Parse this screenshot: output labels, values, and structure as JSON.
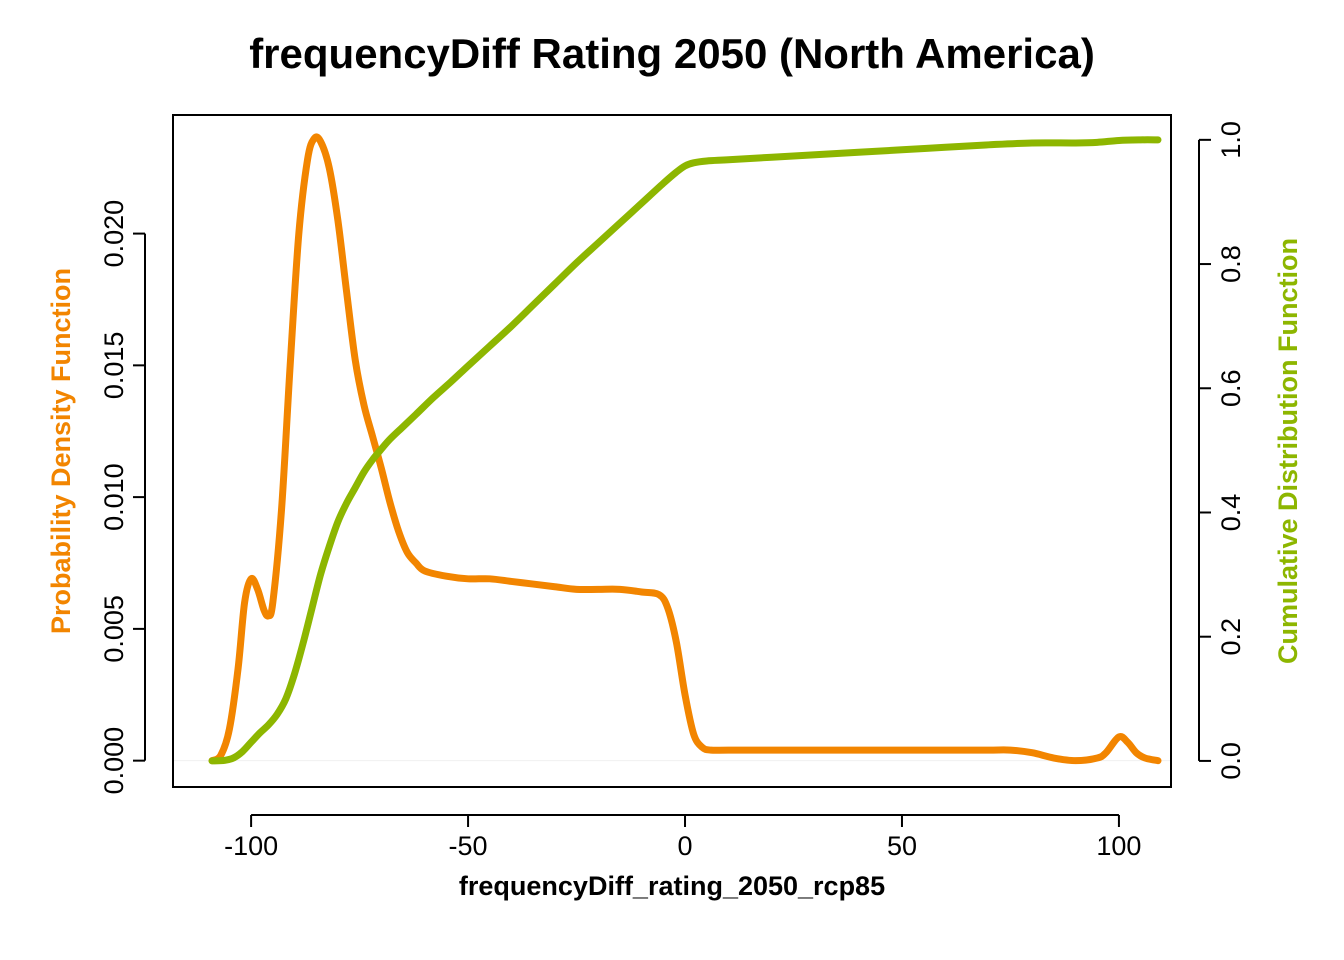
{
  "chart_data": {
    "type": "line",
    "title": "frequencyDiff Rating 2050 (North America)",
    "xlabel": "frequencyDiff_rating_2050_rcp85",
    "ylabel_left": "Probability Density Function",
    "ylabel_right": "Cumulative Distribution Function",
    "xlim": [
      -118,
      112
    ],
    "ylim_left": [
      -0.001,
      0.0245
    ],
    "ylim_right": [
      -0.042,
      1.04
    ],
    "x_ticks": [
      -100,
      -50,
      0,
      50,
      100
    ],
    "x_tick_labels": [
      "-100",
      "-50",
      "0",
      "50",
      "100"
    ],
    "y_left_ticks": [
      0.0,
      0.005,
      0.01,
      0.015,
      0.02
    ],
    "y_left_tick_labels": [
      "0.000",
      "0.005",
      "0.010",
      "0.015",
      "0.020"
    ],
    "y_right_ticks": [
      0.0,
      0.2,
      0.4,
      0.6,
      0.8,
      1.0
    ],
    "y_right_tick_labels": [
      "0.0",
      "0.2",
      "0.4",
      "0.6",
      "0.8",
      "1.0"
    ],
    "grid": false,
    "colors": {
      "pdf": "#F28500",
      "cdf": "#8DB600"
    },
    "series": [
      {
        "key": "pdf",
        "axis": "left",
        "x": [
          -109,
          -107,
          -105,
          -103,
          -101.5,
          -100,
          -98.5,
          -97,
          -96,
          -95,
          -93,
          -91,
          -89,
          -87,
          -85.5,
          -84,
          -82,
          -80,
          -78,
          -76,
          -74,
          -72,
          -70,
          -68,
          -66,
          -64,
          -62,
          -60,
          -55,
          -50,
          -45,
          -40,
          -35,
          -30,
          -25,
          -20,
          -15,
          -10,
          -6,
          -4,
          -2,
          0,
          2,
          4,
          6,
          10,
          20,
          30,
          40,
          50,
          60,
          70,
          75,
          80,
          85,
          90,
          95,
          97,
          100,
          102,
          104,
          106,
          109
        ],
        "values": [
          0.0,
          0.0002,
          0.0012,
          0.0035,
          0.006,
          0.0069,
          0.0065,
          0.0057,
          0.0055,
          0.006,
          0.0095,
          0.015,
          0.02,
          0.0228,
          0.0236,
          0.0235,
          0.0225,
          0.0205,
          0.0178,
          0.0152,
          0.0135,
          0.0123,
          0.0111,
          0.0098,
          0.0087,
          0.0079,
          0.0075,
          0.0072,
          0.007,
          0.0069,
          0.0069,
          0.0068,
          0.0067,
          0.0066,
          0.0065,
          0.0065,
          0.0065,
          0.0064,
          0.0063,
          0.0058,
          0.0045,
          0.0025,
          0.001,
          0.0005,
          0.0004,
          0.0004,
          0.0004,
          0.0004,
          0.0004,
          0.0004,
          0.0004,
          0.0004,
          0.0004,
          0.0003,
          0.0001,
          0.0,
          0.0001,
          0.0003,
          0.0009,
          0.0007,
          0.0003,
          0.0001,
          0.0
        ]
      },
      {
        "key": "cdf",
        "axis": "right",
        "x": [
          -109,
          -106,
          -104,
          -102,
          -100,
          -98,
          -96,
          -94,
          -92,
          -90,
          -88,
          -86,
          -84,
          -82,
          -80,
          -78,
          -76,
          -74,
          -72,
          -70,
          -68,
          -65,
          -62,
          -58,
          -54,
          -50,
          -45,
          -40,
          -35,
          -30,
          -25,
          -20,
          -15,
          -10,
          -5,
          -2,
          0,
          2,
          5,
          10,
          20,
          30,
          40,
          50,
          60,
          70,
          80,
          90,
          95,
          100,
          105,
          109
        ],
        "values": [
          0.0,
          0.001,
          0.005,
          0.015,
          0.03,
          0.045,
          0.058,
          0.075,
          0.1,
          0.14,
          0.19,
          0.245,
          0.3,
          0.345,
          0.385,
          0.415,
          0.44,
          0.465,
          0.485,
          0.502,
          0.518,
          0.538,
          0.558,
          0.585,
          0.61,
          0.636,
          0.668,
          0.7,
          0.734,
          0.768,
          0.802,
          0.834,
          0.866,
          0.898,
          0.93,
          0.948,
          0.958,
          0.963,
          0.966,
          0.968,
          0.972,
          0.976,
          0.98,
          0.984,
          0.988,
          0.992,
          0.995,
          0.995,
          0.996,
          0.999,
          1.0,
          1.0
        ]
      }
    ]
  }
}
